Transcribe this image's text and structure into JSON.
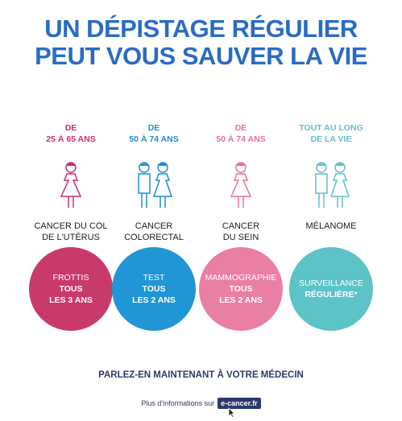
{
  "headline": {
    "line1": "UN DÉPISTAGE RÉGULIER",
    "line2": "PEUT VOUS SAUVER LA VIE",
    "color": "#2a6cc4"
  },
  "columns": [
    {
      "age_line1": "DE",
      "age_line2": "25 À 65 ANS",
      "age_color": "#c92f6e",
      "figure": "woman-icon",
      "cancer_line1": "CANCER DU COL",
      "cancer_line2": "DE L'UTÉRUS",
      "circle_color": "#c93a6c",
      "exam": "FROTTIS",
      "freq1": "TOUS",
      "freq2": "LES 3 ANS"
    },
    {
      "age_line1": "DE",
      "age_line2": "50 À 74 ANS",
      "age_color": "#1d8fd0",
      "figure": "man-and-woman-icon",
      "cancer_line1": "CANCER",
      "cancer_line2": "COLORECTAL",
      "circle_color": "#2196d6",
      "exam": "TEST",
      "freq1": "TOUS",
      "freq2": "LES 2 ANS"
    },
    {
      "age_line1": "DE",
      "age_line2": "50 À 74 ANS",
      "age_color": "#e4739c",
      "figure": "woman-icon",
      "cancer_line1": "CANCER",
      "cancer_line2": "DU SEIN",
      "circle_color": "#ea7fa4",
      "exam": "MAMMOGRAPHIE",
      "freq1": "TOUS",
      "freq2": "LES 2 ANS"
    },
    {
      "age_line1": "TOUT AU LONG",
      "age_line2": "DE LA VIE",
      "age_color": "#5fc1cc",
      "figure": "man-and-woman-icon",
      "cancer_line1": "MÉLANOME",
      "cancer_line2": "",
      "circle_color": "#5cc3c8",
      "exam": "SURVEILLANCE",
      "freq1": "RÉGULIÈRE*",
      "freq2": ""
    }
  ],
  "cta": "PARLEZ-EN MAINTENANT À VOTRE MÉDECIN",
  "info": {
    "text": "Plus d'informations sur",
    "link": "e-cancer.fr"
  }
}
